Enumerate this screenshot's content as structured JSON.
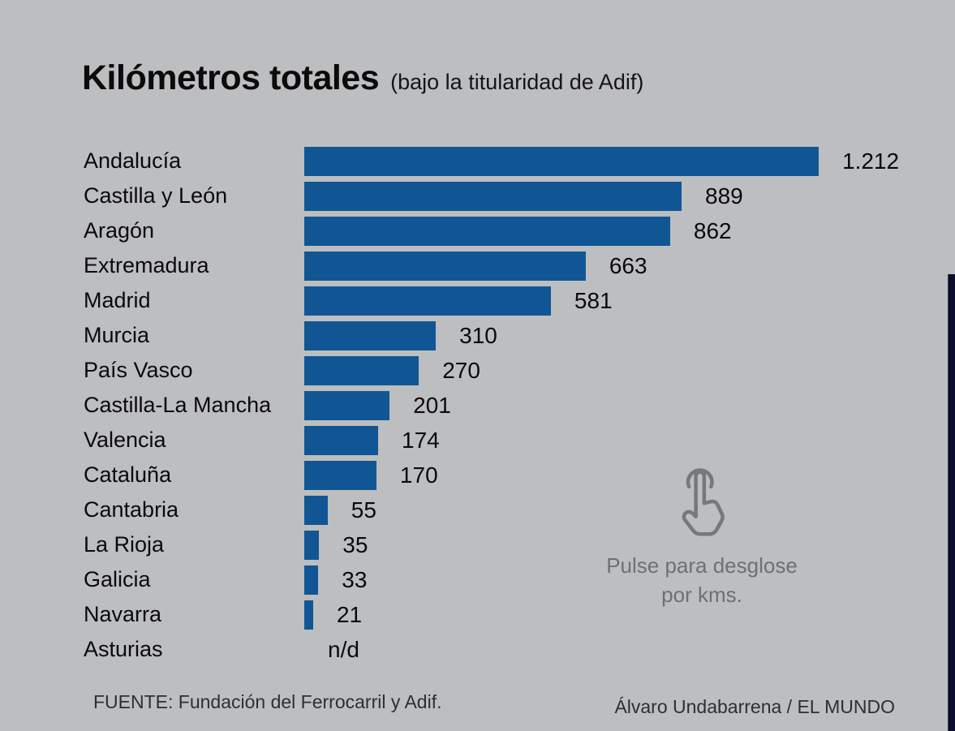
{
  "title": "Kilómetros totales",
  "subtitle": "(bajo la titularidad de Adif)",
  "pulse_note": "Pulse para desglose por kms.",
  "footer": {
    "source": "FUENTE: Fundación del Ferrocarril y Adif.",
    "credit": "Álvaro Undabarrena / EL MUNDO"
  },
  "colors": {
    "background": "#bdbec0",
    "bar": "#115694",
    "edge_strip": "#0c0d2d",
    "pulse_gray": "#6f7073",
    "text": "#0a0a0b"
  },
  "icons": [
    "tap-hand-icon"
  ],
  "chart_data": {
    "type": "bar",
    "orientation": "horizontal",
    "title": "Kilómetros totales (bajo la titularidad de Adif)",
    "xlabel": "",
    "ylabel": "",
    "xlim": [
      0,
      1212
    ],
    "grid": false,
    "value_labels": "end-of-bar",
    "categories": [
      "Andalucía",
      "Castilla y León",
      "Aragón",
      "Extremadura",
      "Madrid",
      "Murcia",
      "País Vasco",
      "Castilla-La Mancha",
      "Valencia",
      "Cataluña",
      "Cantabria",
      "La Rioja",
      "Galicia",
      "Navarra",
      "Asturias"
    ],
    "values": [
      1212,
      889,
      862,
      663,
      581,
      310,
      270,
      201,
      174,
      170,
      55,
      35,
      33,
      21,
      null
    ],
    "value_display": [
      "1.212",
      "889",
      "862",
      "663",
      "581",
      "310",
      "270",
      "201",
      "174",
      "170",
      "55",
      "35",
      "33",
      "21",
      "n/d"
    ]
  }
}
